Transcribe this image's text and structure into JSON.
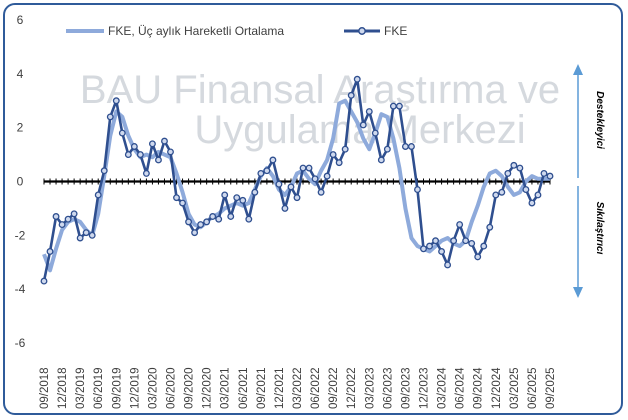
{
  "chart_data": {
    "type": "line",
    "watermark_lines": [
      "BAU Finansal Araştırma ve",
      "Uygulama Merkezi"
    ],
    "ylim": [
      -6,
      6
    ],
    "yticks": [
      -6,
      -4,
      -2,
      0,
      2,
      4,
      6
    ],
    "grid": false,
    "legend_position": "top",
    "side_labels": {
      "upper": "Destekleyici",
      "lower": "Sıkılaştırıcı"
    },
    "x_labels": [
      "09/2018",
      "12/2018",
      "03/2019",
      "06/2019",
      "09/2019",
      "12/2019",
      "03/2020",
      "06/2020",
      "09/2020",
      "12/2020",
      "03/2021",
      "06/2021",
      "09/2021",
      "12/2021",
      "03/2022",
      "06/2022",
      "09/2022",
      "12/2022",
      "03/2023",
      "06/2023",
      "09/2023",
      "12/2023",
      "03/2024",
      "06/2024",
      "09/2024",
      "12/2024",
      "03/2025",
      "06/2025",
      "09/2025"
    ],
    "x_months": [
      "09/2018",
      "10/2018",
      "11/2018",
      "12/2018",
      "01/2019",
      "02/2019",
      "03/2019",
      "04/2019",
      "05/2019",
      "06/2019",
      "07/2019",
      "08/2019",
      "09/2019",
      "10/2019",
      "11/2019",
      "12/2019",
      "01/2020",
      "02/2020",
      "03/2020",
      "04/2020",
      "05/2020",
      "06/2020",
      "07/2020",
      "08/2020",
      "09/2020",
      "10/2020",
      "11/2020",
      "12/2020",
      "01/2021",
      "02/2021",
      "03/2021",
      "04/2021",
      "05/2021",
      "06/2021",
      "07/2021",
      "08/2021",
      "09/2021",
      "10/2021",
      "11/2021",
      "12/2021",
      "01/2022",
      "02/2022",
      "03/2022",
      "04/2022",
      "05/2022",
      "06/2022",
      "07/2022",
      "08/2022",
      "09/2022",
      "10/2022",
      "11/2022",
      "12/2022",
      "01/2023",
      "02/2023",
      "03/2023",
      "04/2023",
      "05/2023",
      "06/2023",
      "07/2023",
      "08/2023",
      "09/2023",
      "10/2023",
      "11/2023",
      "12/2023",
      "01/2024",
      "02/2024",
      "03/2024",
      "04/2024",
      "05/2024",
      "06/2024",
      "07/2024",
      "08/2024",
      "09/2024",
      "10/2024",
      "11/2024",
      "12/2024",
      "01/2025",
      "02/2025",
      "03/2025",
      "04/2025",
      "05/2025",
      "06/2025",
      "07/2025",
      "08/2025",
      "09/2025"
    ],
    "series": [
      {
        "name": "FKE, Üç aylık Hareketli Ortalama",
        "color": "#8eaadb",
        "values": [
          -2.7,
          -3.3,
          -2.5,
          -1.8,
          -1.5,
          -1.4,
          -1.5,
          -1.8,
          -2.0,
          -1.2,
          0.2,
          1.7,
          2.6,
          2.4,
          1.7,
          1.2,
          0.9,
          1.0,
          0.9,
          1.1,
          1.0,
          0.9,
          0.3,
          -0.4,
          -1.2,
          -1.6,
          -1.7,
          -1.5,
          -1.3,
          -1.2,
          -1.0,
          -0.9,
          -0.8,
          -0.9,
          -0.8,
          -0.3,
          0.2,
          0.5,
          0.2,
          -0.3,
          -0.5,
          -0.2,
          0.3,
          0.4,
          0.1,
          -0.1,
          0.4,
          0.8,
          1.6,
          2.9,
          3.0,
          2.6,
          2.2,
          1.6,
          1.2,
          1.8,
          2.5,
          2.4,
          1.6,
          0.5,
          -1.0,
          -2.1,
          -2.4,
          -2.5,
          -2.6,
          -2.4,
          -2.2,
          -2.1,
          -2.3,
          -2.4,
          -2.2,
          -1.5,
          -0.9,
          -0.2,
          0.3,
          0.4,
          0.2,
          -0.2,
          -0.5,
          -0.4,
          0.0,
          0.2,
          0.1,
          0.1,
          0.1
        ]
      },
      {
        "name": "FKE",
        "color": "#2f4f8f",
        "values": [
          -3.7,
          -2.6,
          -1.3,
          -1.6,
          -1.4,
          -1.2,
          -2.1,
          -1.9,
          -2.0,
          -0.5,
          0.4,
          2.4,
          3.0,
          1.8,
          1.0,
          1.3,
          1.0,
          0.3,
          1.4,
          0.8,
          1.5,
          1.1,
          -0.6,
          -0.8,
          -1.5,
          -1.9,
          -1.6,
          -1.5,
          -1.3,
          -1.4,
          -0.5,
          -1.3,
          -0.6,
          -0.7,
          -1.4,
          -0.4,
          0.3,
          0.4,
          0.8,
          -0.1,
          -1.0,
          -0.2,
          -0.6,
          0.5,
          0.5,
          0.1,
          -0.4,
          0.2,
          1.0,
          0.7,
          1.2,
          3.2,
          3.8,
          2.1,
          2.6,
          1.8,
          0.8,
          1.2,
          2.8,
          2.8,
          1.3,
          1.3,
          -0.3,
          -2.5,
          -2.4,
          -2.2,
          -2.6,
          -3.1,
          -2.2,
          -1.6,
          -2.2,
          -2.3,
          -2.8,
          -2.4,
          -1.7,
          -0.5,
          -0.4,
          0.3,
          0.6,
          0.5,
          -0.3,
          -0.8,
          -0.5,
          0.3,
          0.2
        ]
      }
    ]
  }
}
